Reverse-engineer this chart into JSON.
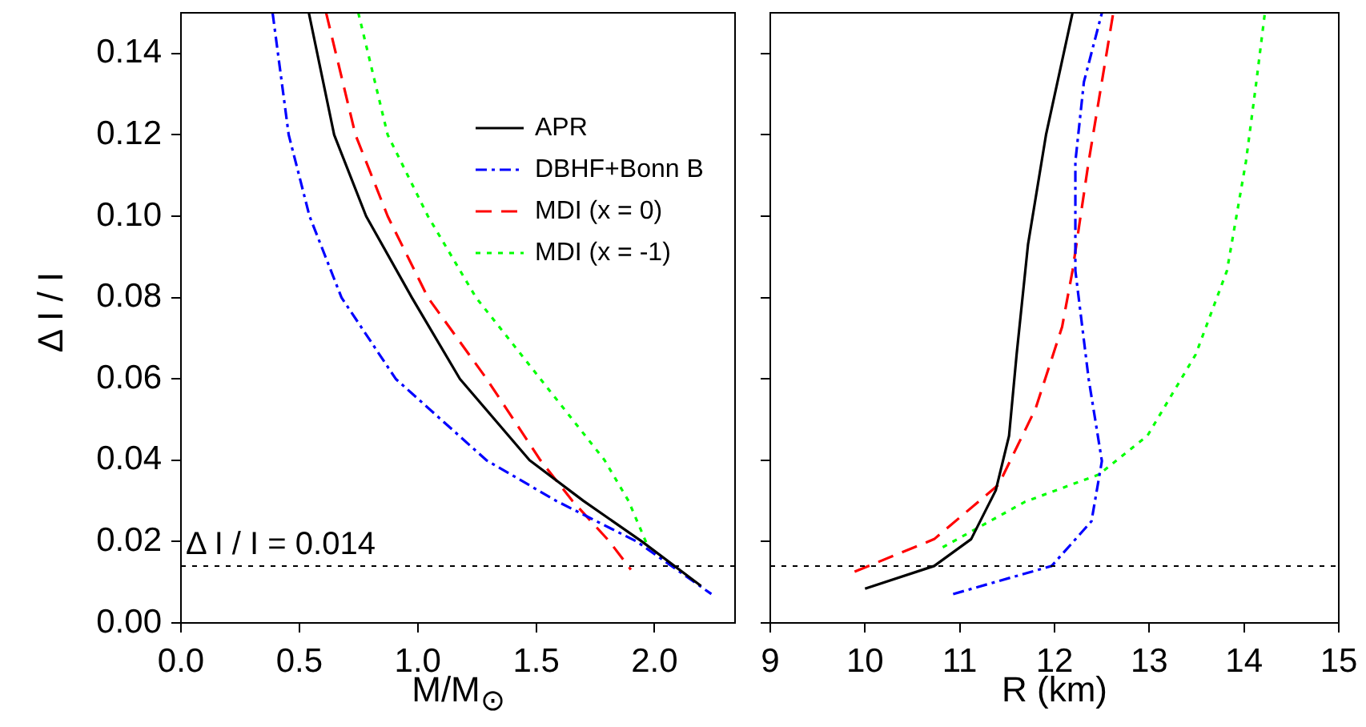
{
  "chart_data": [
    {
      "type": "line",
      "xlabel": "M/M$_{⊙}$",
      "ylabel": "Δ I / I",
      "xlim": [
        0,
        2.34
      ],
      "xticks": [
        {
          "value": 0,
          "label": "0.0"
        },
        {
          "value": 0.5,
          "label": "0.5"
        },
        {
          "value": 1,
          "label": "1.0"
        },
        {
          "value": 1.5,
          "label": "1.5"
        },
        {
          "value": 2,
          "label": "2.0"
        }
      ],
      "ylim": [
        0,
        0.15
      ],
      "yticks": [
        {
          "value": 0,
          "label": "0.00"
        },
        {
          "value": 0.02,
          "label": "0.02"
        },
        {
          "value": 0.04,
          "label": "0.04"
        },
        {
          "value": 0.06,
          "label": "0.06"
        },
        {
          "value": 0.08,
          "label": "0.08"
        },
        {
          "value": 0.1,
          "label": "0.10"
        },
        {
          "value": 0.12,
          "label": "0.12"
        },
        {
          "value": 0.14,
          "label": "0.14"
        }
      ],
      "grid": false,
      "legend": "top right",
      "marker": "none",
      "ref_lines": [
        {
          "axis": "y",
          "value": 0.014,
          "label": "Δ I / I = 0.014",
          "line_style": "dotted",
          "color": "#000000"
        }
      ],
      "series": [
        {
          "name": "APR",
          "color": "#000000",
          "line_style": "solid",
          "x": [
            0.54,
            0.647,
            0.782,
            0.975,
            1.178,
            1.472,
            1.7,
            1.947,
            2.196
          ],
          "values": [
            0.15,
            0.12,
            0.1,
            0.08,
            0.06,
            0.04,
            0.03,
            0.02,
            0.0091
          ]
        },
        {
          "name": "DBHF+Bonn B",
          "color": "#0000ff",
          "line_style": "dashdot",
          "x": [
            0.387,
            0.455,
            0.543,
            0.678,
            0.907,
            1.29,
            1.585,
            1.925,
            2.24
          ],
          "values": [
            0.15,
            0.12,
            0.1,
            0.08,
            0.06,
            0.04,
            0.03,
            0.02,
            0.0071
          ]
        },
        {
          "name": "MDI (x = 0)",
          "color": "#ff0000",
          "line_style": "dashed",
          "x": [
            0.613,
            0.737,
            0.873,
            1.043,
            1.291,
            1.518,
            1.653,
            1.81,
            1.9
          ],
          "values": [
            0.15,
            0.12,
            0.1,
            0.08,
            0.06,
            0.04,
            0.03,
            0.02,
            0.0131
          ]
        },
        {
          "name": "MDI (x = -1)",
          "color": "#00ff00",
          "line_style": "dotted",
          "x": [
            0.749,
            0.873,
            1.043,
            1.246,
            1.518,
            1.789,
            1.89,
            1.969
          ],
          "values": [
            0.15,
            0.12,
            0.1,
            0.08,
            0.06,
            0.04,
            0.03,
            0.0192
          ]
        }
      ]
    },
    {
      "type": "line",
      "xlabel": "R (km)",
      "xlim": [
        9,
        15
      ],
      "xticks": [
        9,
        10,
        11,
        12,
        13,
        14,
        15
      ],
      "ylim": [
        0,
        0.15
      ],
      "yticks": [
        0,
        0.02,
        0.04,
        0.06,
        0.08,
        0.1,
        0.12,
        0.14
      ],
      "tick_labels": "x",
      "grid": false,
      "marker": "none",
      "ref_lines": [
        {
          "axis": "y",
          "value": 0.014,
          "line_style": "dotted",
          "color": "#000000"
        }
      ],
      "series": [
        {
          "color": "#000000",
          "line_style": "solid",
          "x": [
            10.0,
            10.73,
            11.12,
            11.38,
            11.52,
            11.6,
            11.72,
            11.91,
            12.19
          ],
          "values": [
            0.0084,
            0.014,
            0.0206,
            0.0326,
            0.046,
            0.066,
            0.093,
            0.12,
            0.15
          ]
        },
        {
          "color": "#0000ff",
          "line_style": "dashdot",
          "x": [
            10.93,
            11.97,
            12.39,
            12.5,
            12.36,
            12.22,
            12.22,
            12.31,
            12.5
          ],
          "values": [
            0.0071,
            0.014,
            0.025,
            0.0398,
            0.06,
            0.0866,
            0.1134,
            0.133,
            0.15
          ]
        },
        {
          "color": "#ff0000",
          "line_style": "dashed",
          "x": [
            9.89,
            10.73,
            11.41,
            11.8,
            12.08,
            12.19,
            12.36,
            12.62
          ],
          "values": [
            0.0126,
            0.0206,
            0.034,
            0.0527,
            0.0728,
            0.0866,
            0.1134,
            0.15
          ]
        },
        {
          "color": "#00ff00",
          "line_style": "dotted",
          "x": [
            10.82,
            11.69,
            12.47,
            12.98,
            13.49,
            13.82,
            14.02,
            14.13,
            14.22
          ],
          "values": [
            0.0186,
            0.0298,
            0.0365,
            0.046,
            0.066,
            0.0866,
            0.1134,
            0.133,
            0.15
          ]
        }
      ]
    }
  ]
}
